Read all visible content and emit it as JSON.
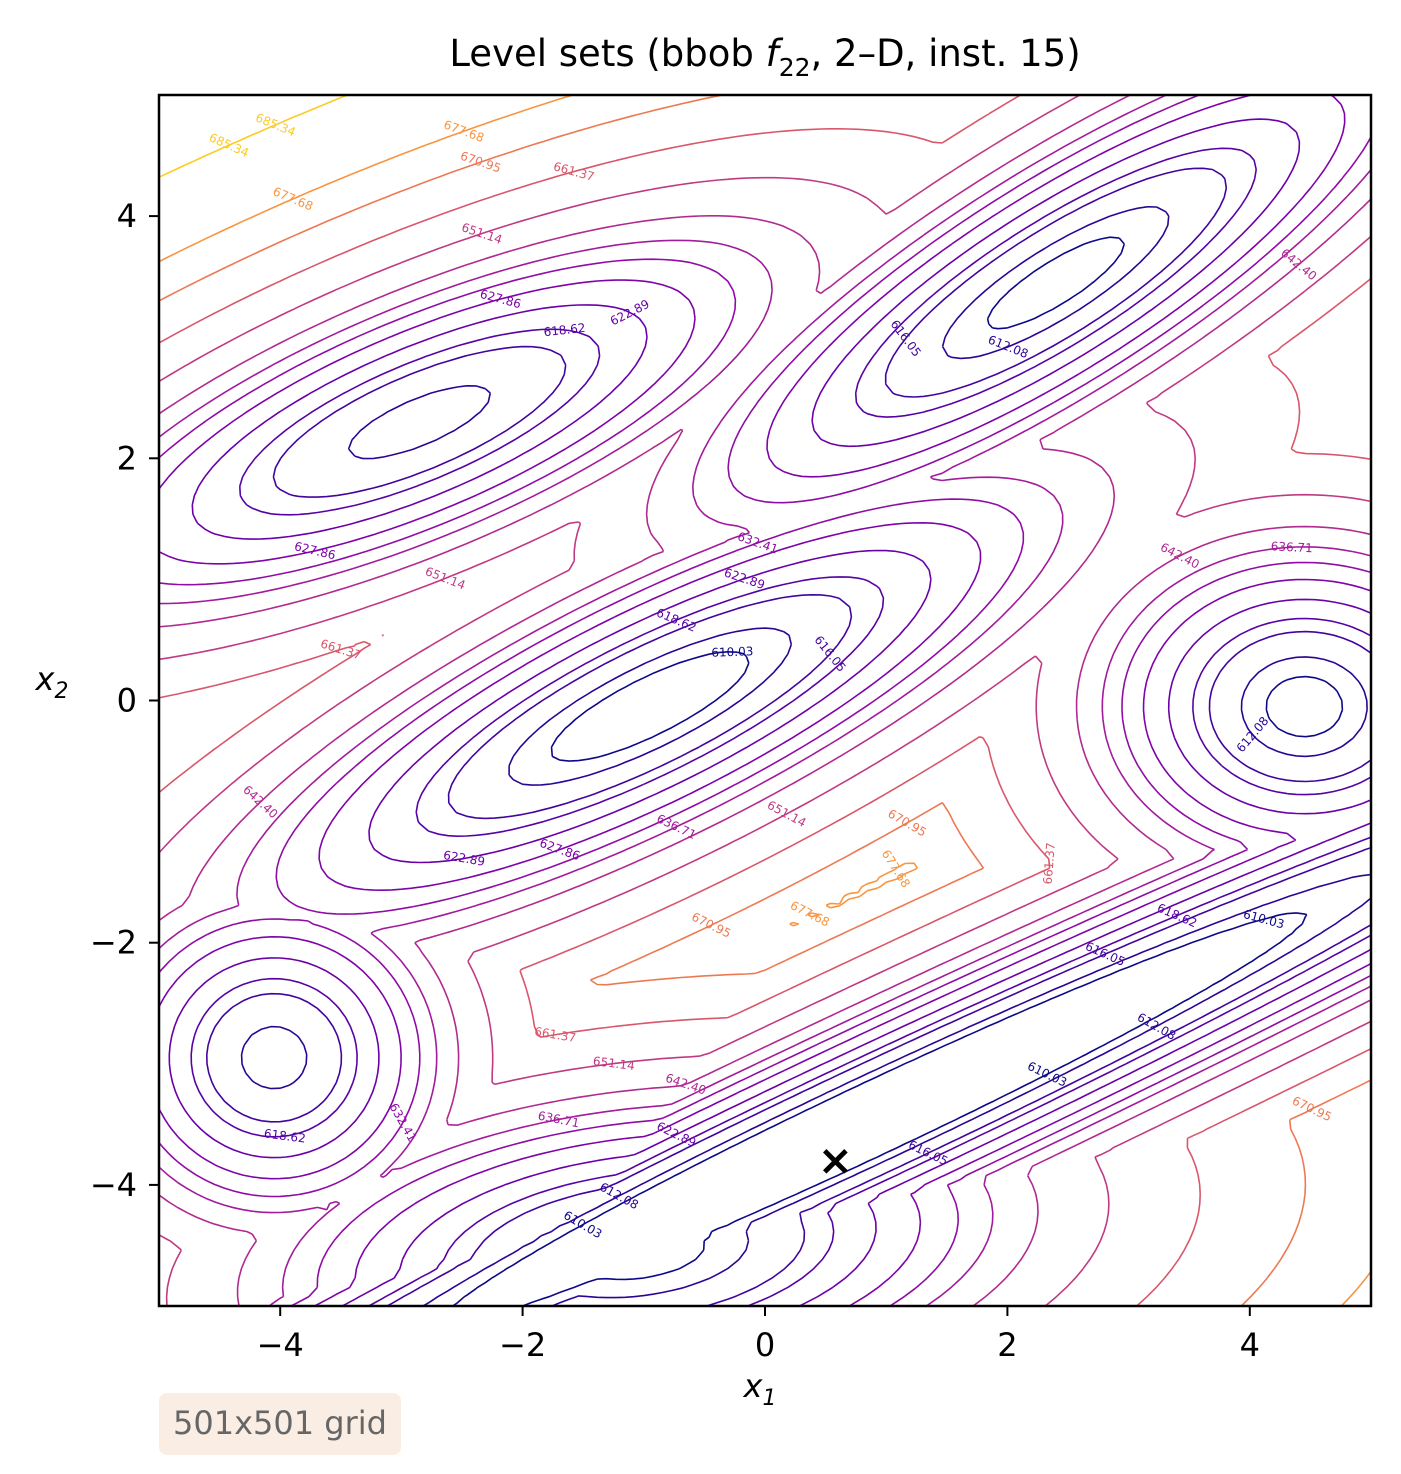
{
  "chart_data": {
    "type": "contour",
    "title_prefix": "Level sets (bbob ",
    "title_func": "f",
    "title_sub": "22",
    "title_suffix": ", 2–D, inst. 15)",
    "xlabel": "x",
    "xlabel_sub": "1",
    "ylabel": "x",
    "ylabel_sub": "2",
    "xlim": [
      -5,
      5
    ],
    "ylim": [
      -5,
      5
    ],
    "xticks": [
      -4,
      -2,
      0,
      2,
      4
    ],
    "yticks": [
      -4,
      -2,
      0,
      2,
      4
    ],
    "xtick_labels": [
      "−4",
      "−2",
      "0",
      "2",
      "4"
    ],
    "ytick_labels": [
      "−4",
      "−2",
      "0",
      "2",
      "4"
    ],
    "colormap": "plasma",
    "levels": [
      610.03,
      612.08,
      616.05,
      618.62,
      622.89,
      627.86,
      632.41,
      636.71,
      642.4,
      651.14,
      661.37,
      670.95,
      677.68,
      685.34
    ],
    "level_colors": [
      "#0d0887",
      "#2a0593",
      "#41049d",
      "#5602a4",
      "#6a00a8",
      "#7e03a8",
      "#8f0da4",
      "#a11b9b",
      "#b12a90",
      "#c03a83",
      "#d8576b",
      "#ed7953",
      "#f89540",
      "#fdca26"
    ],
    "minimum_marker": {
      "x": 0.58,
      "y": -3.8,
      "symbol": "×"
    },
    "grid_note": "501x501 grid"
  }
}
